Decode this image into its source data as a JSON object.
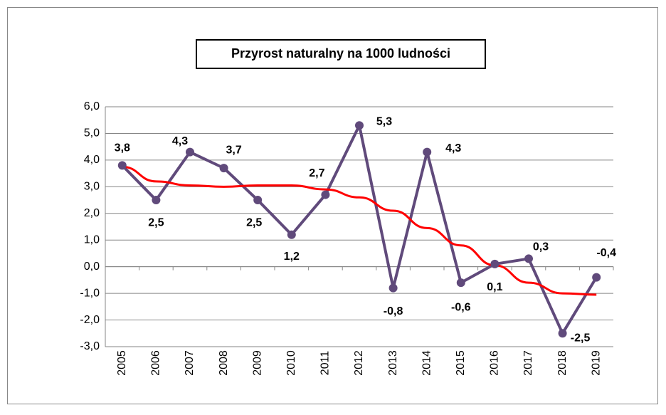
{
  "chart_data": {
    "type": "line",
    "title": "Przyrost naturalny na 1000 ludności",
    "categories": [
      "2005",
      "2006",
      "2007",
      "2008",
      "2009",
      "2010",
      "2011",
      "2012",
      "2013",
      "2014",
      "2015",
      "2016",
      "2017",
      "2018",
      "2019"
    ],
    "series": [
      {
        "color": "#604a7b",
        "values": [
          3.8,
          2.5,
          4.3,
          3.7,
          2.5,
          1.2,
          2.7,
          5.3,
          -0.8,
          4.3,
          -0.6,
          0.1,
          0.3,
          -2.5,
          -0.4
        ],
        "value_labels": [
          "3,8",
          "2,5",
          "4,3",
          "3,7",
          "2,5",
          "1,2",
          "2,7",
          "5,3",
          "-0,8",
          "4,3",
          "-0,6",
          "0,1",
          "0,3",
          "-2,5",
          "-0,4"
        ]
      }
    ],
    "trendline": {
      "color": "#ff0000",
      "values": [
        3.75,
        3.2,
        3.05,
        3.0,
        3.05,
        3.05,
        2.9,
        2.6,
        2.1,
        1.45,
        0.8,
        0.05,
        -0.6,
        -1.0,
        -1.05
      ]
    },
    "ylim": [
      -3,
      6
    ],
    "yticks": [
      {
        "value": -3,
        "label": "-3,0"
      },
      {
        "value": -2,
        "label": "-2,0"
      },
      {
        "value": -1,
        "label": "-1,0"
      },
      {
        "value": 0,
        "label": "0,0"
      },
      {
        "value": 1,
        "label": "1,0"
      },
      {
        "value": 2,
        "label": "2,0"
      },
      {
        "value": 3,
        "label": "3,0"
      },
      {
        "value": 4,
        "label": "4,0"
      },
      {
        "value": 5,
        "label": "5,0"
      },
      {
        "value": 6,
        "label": "6,0"
      }
    ],
    "grid": true
  }
}
